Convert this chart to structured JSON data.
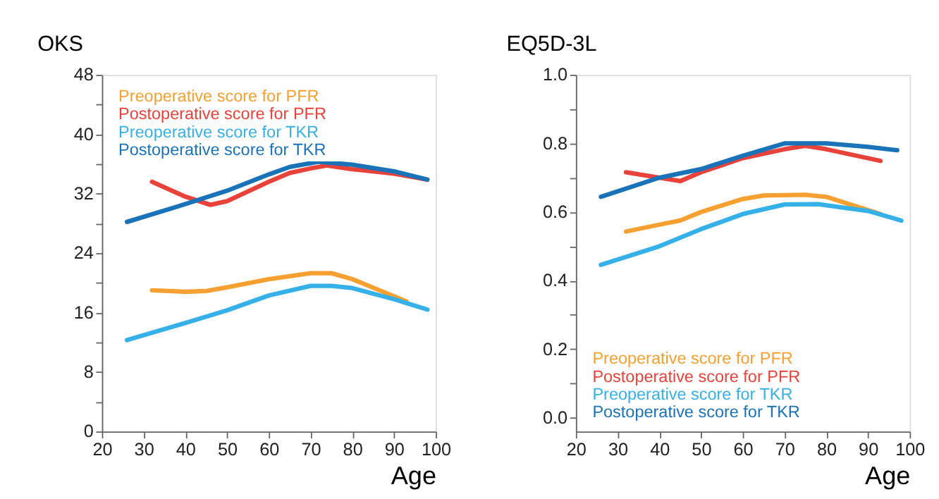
{
  "chart_data": [
    {
      "type": "line",
      "title": "OKS",
      "xlabel": "Age",
      "xlim": [
        20,
        100
      ],
      "xticks": [
        20,
        30,
        40,
        50,
        60,
        70,
        80,
        90,
        100
      ],
      "ylim": [
        0,
        48
      ],
      "yticks": [
        0,
        {
          "value": 4,
          "label": null
        },
        8,
        {
          "value": 12,
          "label": null
        },
        16,
        {
          "value": 20,
          "label": null
        },
        24,
        {
          "value": 28,
          "label": null
        },
        32,
        {
          "value": 36,
          "label": null
        },
        40,
        {
          "value": 44,
          "label": null
        },
        48
      ],
      "grid": false,
      "legend": "top left",
      "series": [
        {
          "name": "Preoperative score for PFR",
          "color": "#f5a030",
          "x": [
            32,
            40,
            45,
            50,
            60,
            70,
            75,
            80,
            90,
            93
          ],
          "values": [
            19.0,
            18.8,
            18.9,
            19.4,
            20.5,
            21.3,
            21.3,
            20.5,
            18.2,
            17.5
          ]
        },
        {
          "name": "Postoperative score for PFR",
          "color": "#e8423a",
          "x": [
            32,
            40,
            46,
            50,
            60,
            65,
            70,
            74,
            80,
            90,
            98
          ],
          "values": [
            33.6,
            31.6,
            30.5,
            31.0,
            33.6,
            34.8,
            35.4,
            35.8,
            35.3,
            34.7,
            33.9
          ]
        },
        {
          "name": "Preoperative score for TKR",
          "color": "#36b0e8",
          "x": [
            26,
            40,
            50,
            60,
            70,
            75,
            80,
            90,
            98
          ],
          "values": [
            12.3,
            14.6,
            16.3,
            18.3,
            19.6,
            19.6,
            19.3,
            17.8,
            16.4
          ]
        },
        {
          "name": "Postoperative score for TKR",
          "color": "#1a72b8",
          "x": [
            26,
            40,
            50,
            60,
            65,
            72,
            80,
            90,
            98
          ],
          "values": [
            28.2,
            30.6,
            32.4,
            34.6,
            35.6,
            36.3,
            35.9,
            35.0,
            33.9
          ]
        }
      ]
    },
    {
      "type": "line",
      "title": "EQ5D-3L",
      "xlabel": "Age",
      "xlim": [
        20,
        100
      ],
      "xticks": [
        20,
        30,
        40,
        50,
        60,
        70,
        80,
        90,
        100
      ],
      "ylim": [
        -0.04,
        1.0
      ],
      "yticks": [
        {
          "value": 0,
          "label": "0.0"
        },
        {
          "value": 0.1,
          "label": null
        },
        0.2,
        {
          "value": 0.3,
          "label": null
        },
        0.4,
        {
          "value": 0.5,
          "label": null
        },
        0.6,
        {
          "value": 0.7,
          "label": null
        },
        0.8,
        {
          "value": 0.9,
          "label": null
        },
        {
          "value": 1.0,
          "label": "1.0"
        }
      ],
      "grid": false,
      "legend": "bottom left",
      "series": [
        {
          "name": "Preoperative score for PFR",
          "color": "#f5a030",
          "x": [
            32,
            40,
            45,
            50,
            60,
            65,
            75,
            80,
            93
          ],
          "values": [
            0.543,
            0.563,
            0.575,
            0.6,
            0.638,
            0.648,
            0.65,
            0.644,
            0.594
          ]
        },
        {
          "name": "Postoperative score for PFR",
          "color": "#e8423a",
          "x": [
            32,
            40,
            45,
            50,
            60,
            70,
            75,
            80,
            93
          ],
          "values": [
            0.716,
            0.7,
            0.69,
            0.716,
            0.757,
            0.783,
            0.793,
            0.783,
            0.749
          ]
        },
        {
          "name": "Preoperative score for TKR",
          "color": "#36b0e8",
          "x": [
            26,
            40,
            50,
            60,
            70,
            78,
            90,
            98
          ],
          "values": [
            0.446,
            0.5,
            0.55,
            0.594,
            0.622,
            0.623,
            0.603,
            0.575
          ]
        },
        {
          "name": "Postoperative score for TKR",
          "color": "#1a72b8",
          "x": [
            26,
            40,
            50,
            60,
            70,
            75,
            80,
            90,
            97
          ],
          "values": [
            0.644,
            0.7,
            0.725,
            0.764,
            0.8,
            0.8,
            0.8,
            0.79,
            0.78
          ]
        }
      ]
    }
  ]
}
